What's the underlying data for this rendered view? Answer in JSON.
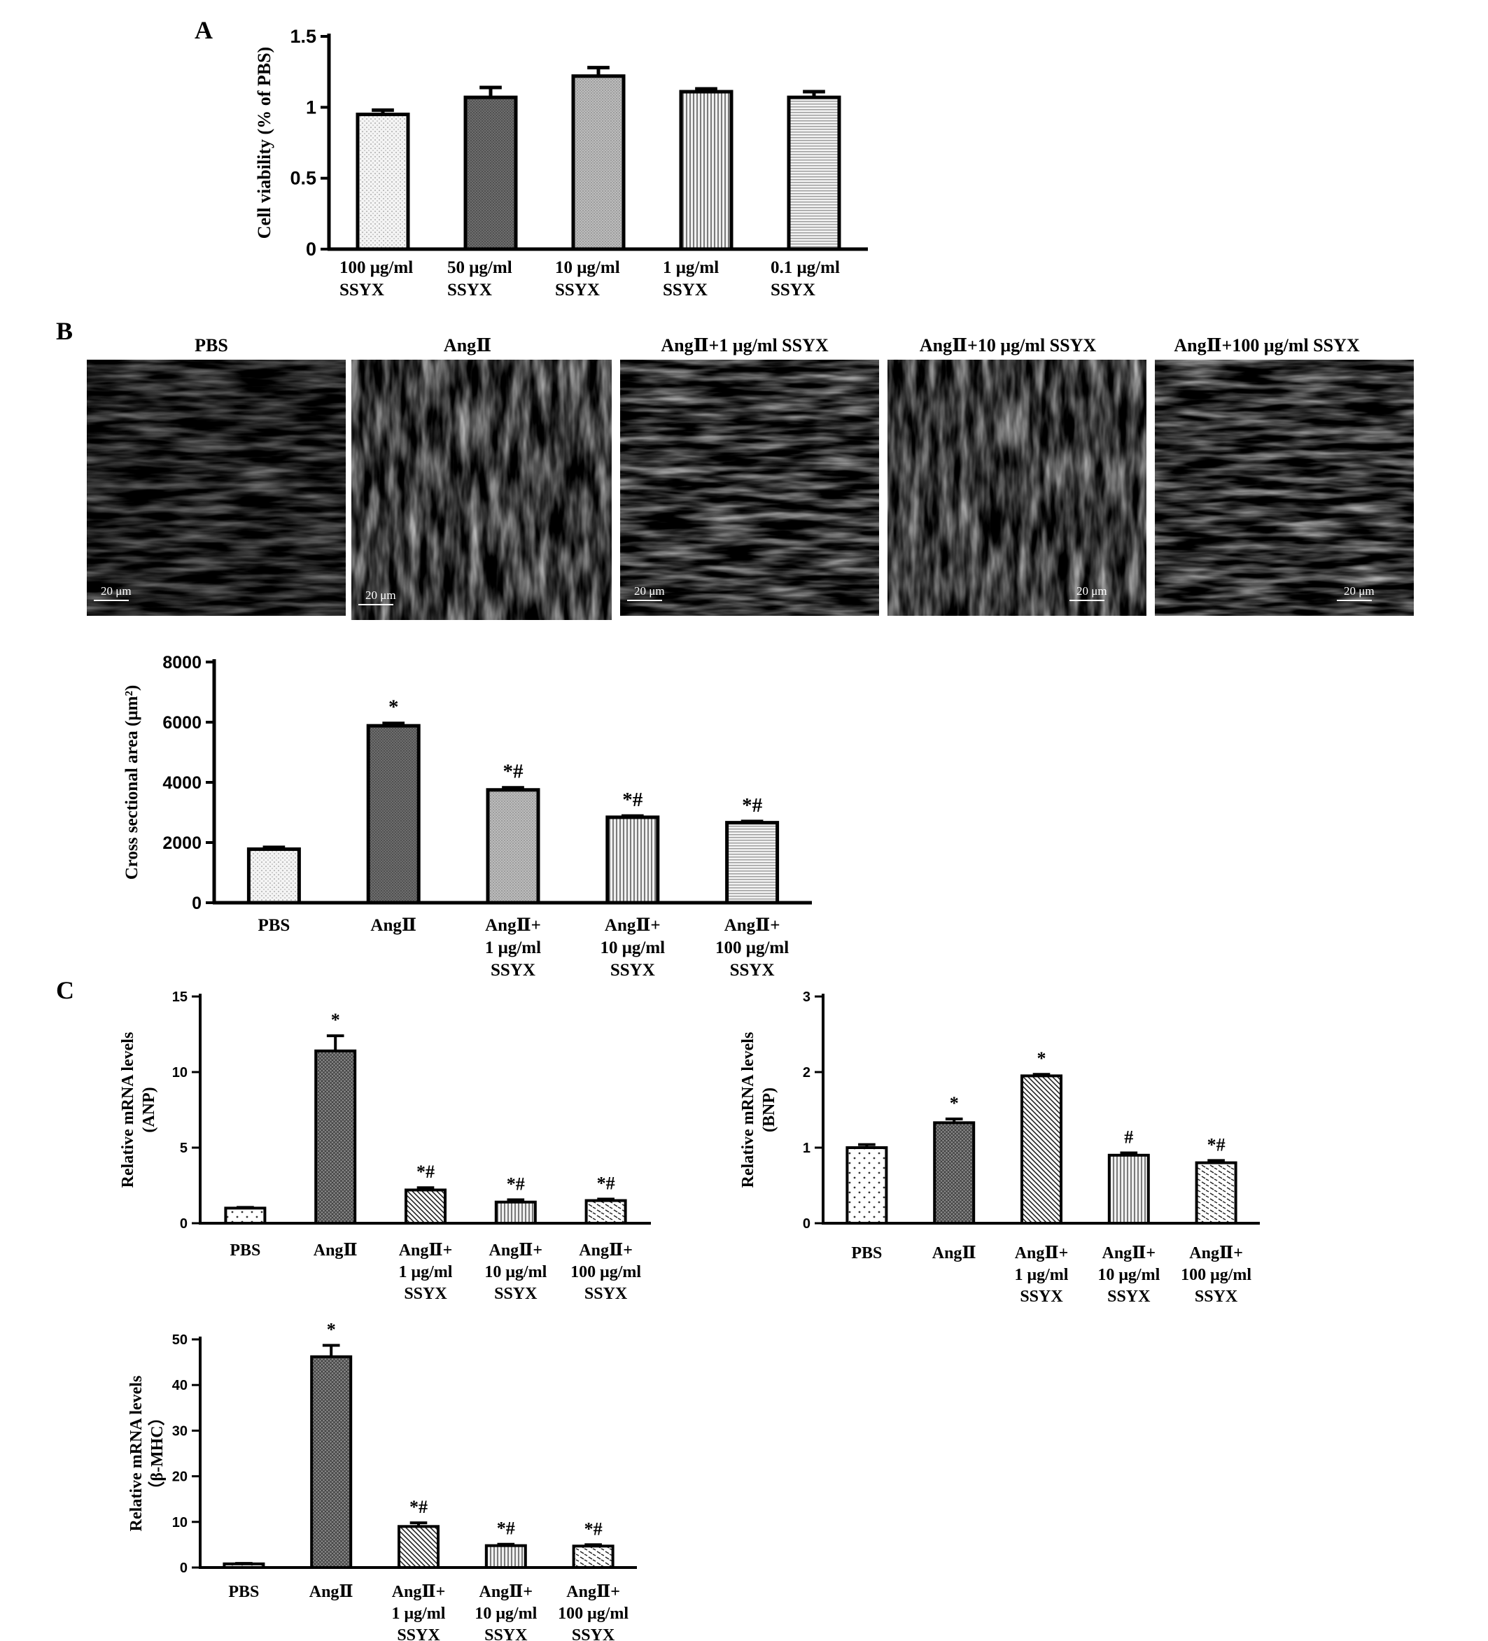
{
  "panels": {
    "a": "A",
    "b": "B",
    "c": "C"
  },
  "colors": {
    "ink": "#000000",
    "cell_background": "#000000",
    "cell_stain": "#cfcfcf",
    "scale_bar": "#ffffff"
  },
  "micrographs": [
    {
      "title": "PBS",
      "scale": "20 μm"
    },
    {
      "title": "AngⅡ",
      "scale": "20 μm"
    },
    {
      "title": "AngⅡ+1 μg/ml SSYX",
      "scale": "20 μm"
    },
    {
      "title": "AngⅡ+10 μg/ml SSYX",
      "scale": "20 μm"
    },
    {
      "title": "AngⅡ+100 μg/ml SSYX",
      "scale": "20 μm"
    }
  ],
  "chart_data": [
    {
      "id": "A",
      "type": "bar",
      "ylabel": "Cell viability (% of PBS)",
      "ylim": [
        0,
        1.5
      ],
      "yticks": [
        "0",
        "0.5",
        "1",
        "1.5"
      ],
      "categories": [
        [
          "100 μg/ml",
          "SSYX"
        ],
        [
          "50 μg/ml",
          "SSYX"
        ],
        [
          "10 μg/ml",
          "SSYX"
        ],
        [
          "1 μg/ml",
          "SSYX"
        ],
        [
          "0.1 μg/ml",
          "SSYX"
        ]
      ],
      "values": [
        0.95,
        1.07,
        1.22,
        1.11,
        1.07
      ],
      "errors": [
        0.03,
        0.07,
        0.06,
        0.02,
        0.04
      ],
      "annotations": [
        "",
        "",
        "",
        "",
        ""
      ],
      "patterns": [
        "dots",
        "dark",
        "medium",
        "vlines",
        "hlines"
      ],
      "grid": false,
      "legend": "none"
    },
    {
      "id": "B",
      "type": "bar",
      "ylabel": "Cross sectional area (μm²)",
      "ylim": [
        0,
        8000
      ],
      "yticks": [
        "0",
        "2000",
        "4000",
        "6000",
        "8000"
      ],
      "categories": [
        [
          "PBS"
        ],
        [
          "AngⅡ"
        ],
        [
          "AngⅡ+",
          "1 μg/ml",
          "SSYX"
        ],
        [
          "AngⅡ+",
          "10 μg/ml",
          "SSYX"
        ],
        [
          "AngⅡ+",
          "100 μg/ml",
          "SSYX"
        ]
      ],
      "values": [
        1780,
        5880,
        3750,
        2840,
        2660
      ],
      "errors": [
        60,
        80,
        70,
        40,
        40
      ],
      "annotations": [
        "",
        "*",
        "*#",
        "*#",
        "*#"
      ],
      "patterns": [
        "dots",
        "dark",
        "medium",
        "vlines",
        "hlines"
      ],
      "grid": false,
      "legend": "none"
    },
    {
      "id": "C-ANP",
      "type": "bar",
      "ylabel": [
        "Relative mRNA levels",
        "(ANP)"
      ],
      "ylim": [
        0,
        15
      ],
      "yticks": [
        "0",
        "5",
        "10",
        "15"
      ],
      "categories": [
        [
          "PBS"
        ],
        [
          "AngⅡ"
        ],
        [
          "AngⅡ+",
          "1 μg/ml",
          "SSYX"
        ],
        [
          "AngⅡ+",
          "10 μg/ml",
          "SSYX"
        ],
        [
          "AngⅡ+",
          "100 μg/ml",
          "SSYX"
        ]
      ],
      "values": [
        1.0,
        11.4,
        2.2,
        1.4,
        1.5
      ],
      "errors": [
        0.05,
        1.0,
        0.15,
        0.15,
        0.1
      ],
      "annotations": [
        "",
        "*",
        "*#",
        "*#",
        "*#"
      ],
      "patterns": [
        "sparsedots",
        "crosshatch",
        "diag",
        "vlines",
        "dashdiag"
      ],
      "grid": false,
      "legend": "none"
    },
    {
      "id": "C-BNP",
      "type": "bar",
      "ylabel": [
        "Relative mRNA levels",
        "(BNP)"
      ],
      "ylim": [
        0,
        3
      ],
      "yticks": [
        "0",
        "1",
        "2",
        "3"
      ],
      "categories": [
        [
          "PBS"
        ],
        [
          "AngⅡ"
        ],
        [
          "AngⅡ+",
          "1 μg/ml",
          "SSYX"
        ],
        [
          "AngⅡ+",
          "10 μg/ml",
          "SSYX"
        ],
        [
          "AngⅡ+",
          "100 μg/ml",
          "SSYX"
        ]
      ],
      "values": [
        1.0,
        1.33,
        1.95,
        0.9,
        0.8
      ],
      "errors": [
        0.04,
        0.05,
        0.02,
        0.03,
        0.03
      ],
      "annotations": [
        "",
        "*",
        "*",
        "#",
        "*#"
      ],
      "patterns": [
        "sparsedots",
        "crosshatch",
        "diag",
        "vlines",
        "dashdiag"
      ],
      "grid": false,
      "legend": "none"
    },
    {
      "id": "C-bMHC",
      "type": "bar",
      "ylabel": [
        "Relative mRNA levels",
        "（β-MHC）"
      ],
      "ylim": [
        0,
        50
      ],
      "yticks": [
        "0",
        "10",
        "20",
        "30",
        "40",
        "50"
      ],
      "categories": [
        [
          "PBS"
        ],
        [
          "AngⅡ"
        ],
        [
          "AngⅡ+",
          "1 μg/ml",
          "SSYX"
        ],
        [
          "AngⅡ+",
          "10 μg/ml",
          "SSYX"
        ],
        [
          "AngⅡ+",
          "100 μg/ml",
          "SSYX"
        ]
      ],
      "values": [
        0.8,
        46.2,
        9.0,
        4.8,
        4.7
      ],
      "errors": [
        0.1,
        2.5,
        0.8,
        0.3,
        0.3
      ],
      "annotations": [
        "",
        "*",
        "*#",
        "*#",
        "*#"
      ],
      "patterns": [
        "sparsedots",
        "crosshatch",
        "diag",
        "vlines",
        "dashdiag"
      ],
      "grid": false,
      "legend": "none"
    }
  ]
}
